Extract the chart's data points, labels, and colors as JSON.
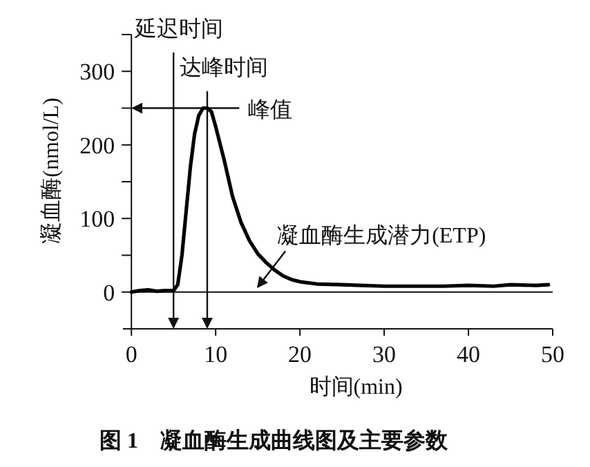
{
  "chart_data": {
    "type": "line",
    "xlabel": "时间(min)",
    "ylabel": "凝血酶(nmol/L)",
    "x": [
      0,
      1,
      2,
      3,
      4,
      5,
      5.5,
      6,
      6.5,
      7,
      7.5,
      8,
      8.5,
      9,
      9.5,
      10,
      11,
      12,
      13,
      14,
      15,
      16,
      17,
      18,
      19,
      20,
      22,
      25,
      30,
      35,
      37,
      40,
      43,
      45,
      48,
      49.5
    ],
    "series": [
      {
        "color": "#000000",
        "values": [
          0,
          2,
          3,
          1,
          2,
          2,
          10,
          50,
          110,
          170,
          215,
          240,
          250,
          250,
          245,
          225,
          180,
          130,
          95,
          70,
          52,
          40,
          30,
          22,
          17,
          14,
          11,
          10,
          8,
          8,
          8,
          9,
          8,
          10,
          9,
          10
        ]
      }
    ],
    "xlim": [
      -1,
      50
    ],
    "xticks": [
      0,
      10,
      20,
      30,
      40,
      50
    ],
    "ylim": [
      -50,
      350
    ],
    "yticks": [
      0,
      {
        "value": 50,
        "label": null
      },
      100,
      {
        "value": 150,
        "label": null
      },
      200,
      {
        "value": 250,
        "label": null
      },
      300,
      {
        "value": 350,
        "label": null
      }
    ],
    "ref_lines": [
      {
        "axis": "y",
        "value": 0
      },
      {
        "axis": "x",
        "value": 5,
        "label": "延迟时间"
      },
      {
        "axis": "x",
        "value": 9,
        "label": "达峰时间"
      },
      {
        "axis": "y",
        "value": 250,
        "label": "峰值"
      }
    ],
    "annotations": [
      {
        "text": "凝血酶生成潜力(ETP)",
        "x": 15,
        "y": 5
      },
      "图 1　凝血酶生成曲线图及主要参数"
    ],
    "marker": "none",
    "line_style": "solid"
  }
}
